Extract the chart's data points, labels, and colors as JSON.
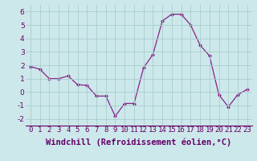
{
  "x": [
    0,
    1,
    2,
    3,
    4,
    5,
    6,
    7,
    8,
    9,
    10,
    11,
    12,
    13,
    14,
    15,
    16,
    17,
    18,
    19,
    20,
    21,
    22,
    23
  ],
  "y": [
    1.9,
    1.7,
    1.0,
    1.0,
    1.2,
    0.55,
    0.5,
    -0.3,
    -0.3,
    -1.8,
    -0.85,
    -0.85,
    1.8,
    2.8,
    5.3,
    5.8,
    5.8,
    5.0,
    3.5,
    2.7,
    -0.2,
    -1.1,
    -0.2,
    0.2
  ],
  "line_color": "#882288",
  "marker_color": "#882288",
  "bg_color": "#cce8eb",
  "grid_color": "#aacccc",
  "xlabel": "Windchill (Refroidissement éolien,°C)",
  "xlabel_fontsize": 7.5,
  "tick_fontsize": 6.5,
  "ylim": [
    -2.5,
    6.5
  ],
  "yticks": [
    -2,
    -1,
    0,
    1,
    2,
    3,
    4,
    5,
    6
  ],
  "xticks": [
    0,
    1,
    2,
    3,
    4,
    5,
    6,
    7,
    8,
    9,
    10,
    11,
    12,
    13,
    14,
    15,
    16,
    17,
    18,
    19,
    20,
    21,
    22,
    23
  ]
}
